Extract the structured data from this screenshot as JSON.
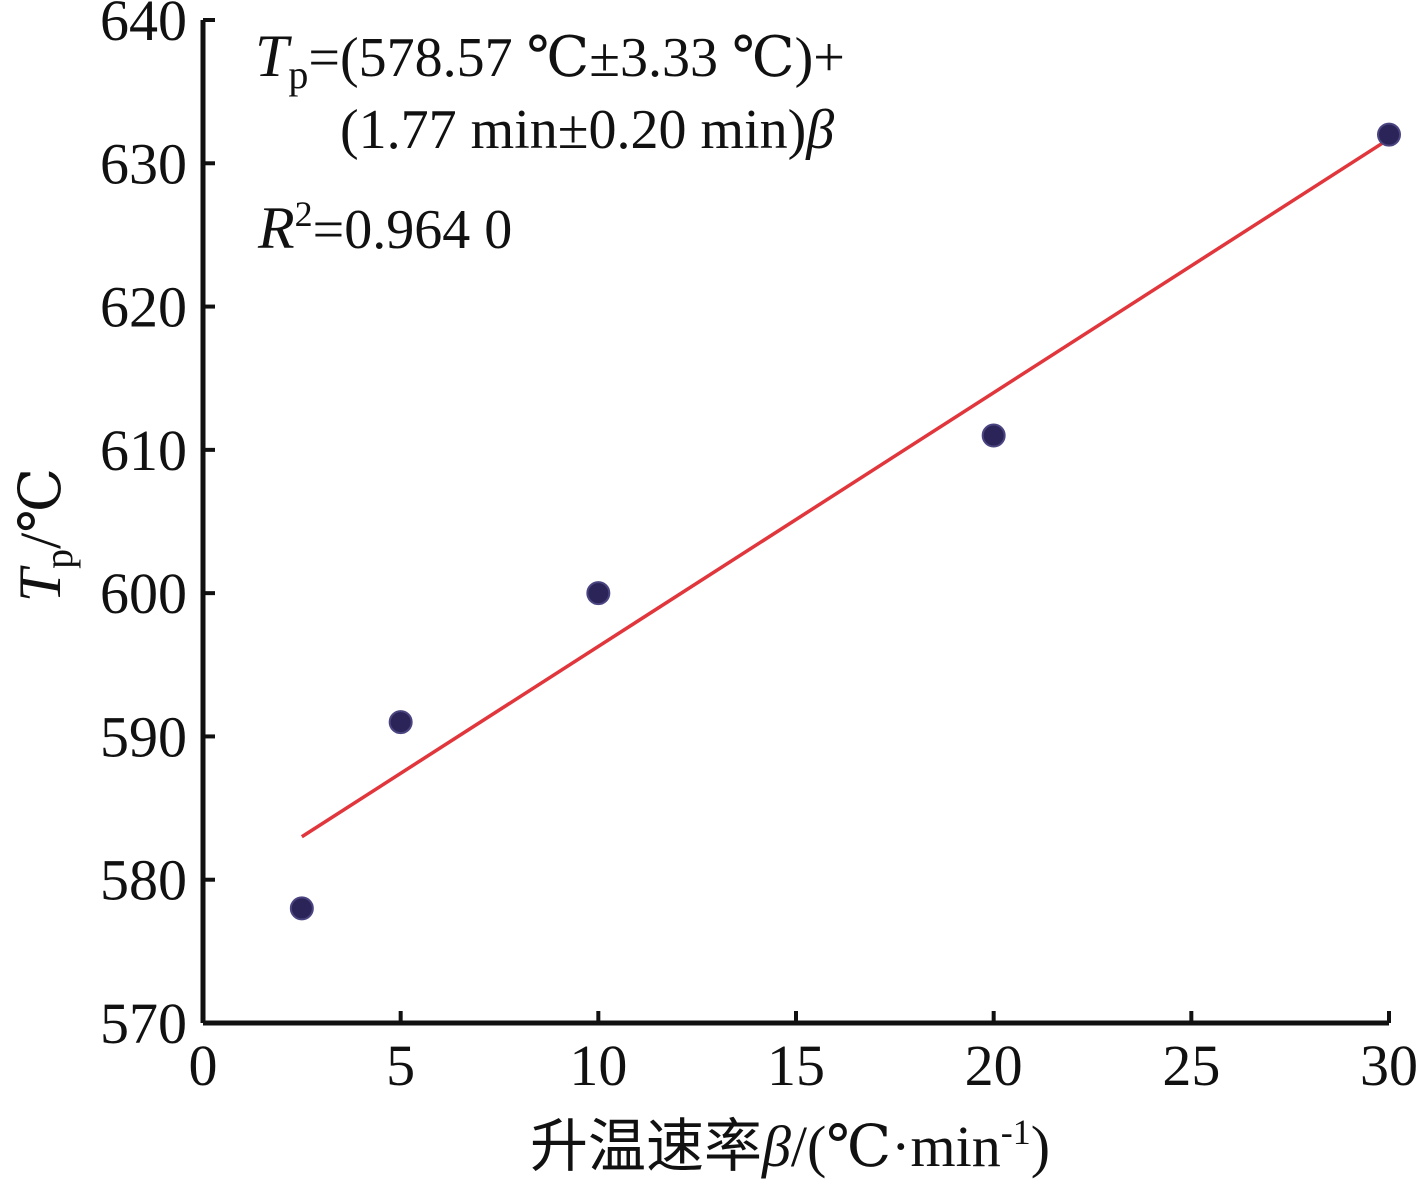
{
  "chart_data": {
    "type": "scatter",
    "title": "",
    "xlabel": "升温速率β/(℃·min-1)",
    "ylabel": "Tp/℃",
    "xlim": [
      0,
      30
    ],
    "ylim": [
      570,
      640
    ],
    "x_ticks": [
      "0",
      "5",
      "10",
      "15",
      "20",
      "25",
      "30"
    ],
    "y_ticks": [
      "570",
      "580",
      "590",
      "600",
      "610",
      "620",
      "630",
      "640"
    ],
    "grid": false,
    "legend": "none",
    "series": [
      {
        "x": [
          2.5,
          5,
          10,
          20,
          30
        ],
        "y": [
          578,
          591,
          600,
          611,
          632
        ],
        "color": "#2b2458"
      }
    ],
    "fit_line": {
      "x": [
        2.5,
        30
      ],
      "y": [
        583.0,
        631.7
      ],
      "color": "#e0363c"
    },
    "annotations": {
      "eq_line1": "Tp=(578.57 ℃±3.33 ℃)+",
      "eq_line2": "(1.77 min±0.20 min)β",
      "r2": "R2=0.964 0"
    }
  }
}
